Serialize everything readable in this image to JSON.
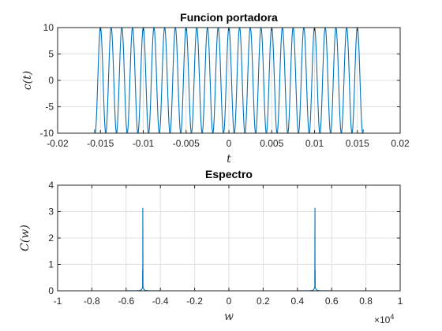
{
  "chart_data": [
    {
      "type": "line",
      "title": "Funcion portadora",
      "xlabel": "t",
      "ylabel": "c(t)",
      "xlim": [
        -0.02,
        0.02
      ],
      "ylim": [
        -10,
        10
      ],
      "xticks": [
        -0.02,
        -0.015,
        -0.01,
        -0.005,
        0,
        0.005,
        0.01,
        0.015,
        0.02
      ],
      "xtick_labels": [
        "-0.02",
        "-0.015",
        "-0.01",
        "-0.005",
        "0",
        "0.005",
        "0.01",
        "0.015",
        "0.02"
      ],
      "yticks": [
        -10,
        -5,
        0,
        5,
        10
      ],
      "ytick_labels": [
        "-10",
        "-5",
        "0",
        "5",
        "10"
      ],
      "grid": true,
      "series": [
        {
          "function": "10*cos(2*pi*800*t)",
          "amplitude": 10,
          "frequency_hz": 800,
          "t_range": [
            -0.0157,
            0.0157
          ],
          "color": "#0072BD"
        }
      ]
    },
    {
      "type": "line",
      "title": "Espectro",
      "xlabel": "w",
      "ylabel": "C(w)",
      "xlim": [
        -10000,
        10000
      ],
      "ylim": [
        0,
        4
      ],
      "xticks": [
        -10000,
        -8000,
        -6000,
        -4000,
        -2000,
        0,
        2000,
        4000,
        6000,
        8000,
        10000
      ],
      "xtick_labels": [
        "-1",
        "-0.8",
        "-0.6",
        "-0.4",
        "-0.2",
        "0",
        "0.2",
        "0.4",
        "0.6",
        "0.8",
        "1"
      ],
      "x_multiplier": "×10",
      "x_multiplier_exp": "4",
      "yticks": [
        0,
        1,
        2,
        3,
        4
      ],
      "ytick_labels": [
        "0",
        "1",
        "2",
        "3",
        "4"
      ],
      "grid": true,
      "series": [
        {
          "peaks": [
            {
              "x": -5027,
              "y": 3.14
            },
            {
              "x": 5027,
              "y": 3.14
            }
          ],
          "baseline": 0,
          "color": "#0072BD"
        }
      ]
    }
  ]
}
